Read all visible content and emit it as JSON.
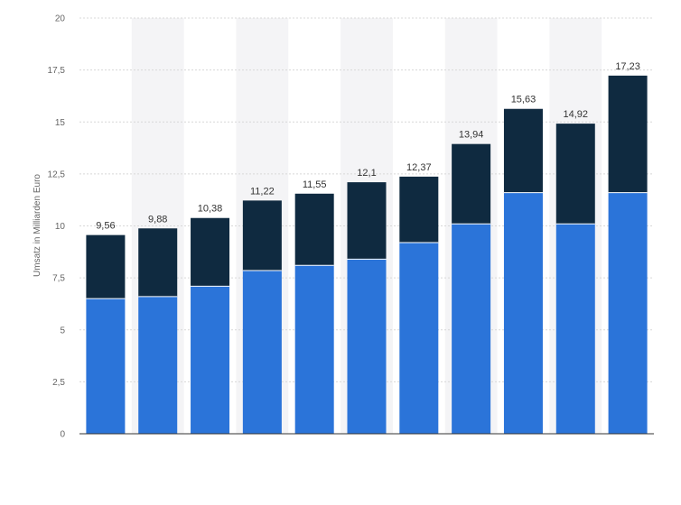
{
  "chart_data": {
    "type": "bar",
    "stacked": true,
    "ylabel": "Umsatz in Milliarden Euro",
    "ylim": [
      0,
      20
    ],
    "yticks": [
      0,
      2.5,
      5,
      7.5,
      10,
      12.5,
      15,
      17.5,
      20
    ],
    "ytick_labels": [
      "0",
      "2,5",
      "5",
      "7,5",
      "10",
      "12,5",
      "15",
      "17,5",
      "20"
    ],
    "grid": true,
    "totals": [
      9.56,
      9.88,
      10.38,
      11.22,
      11.55,
      12.1,
      12.37,
      13.94,
      15.63,
      14.92,
      17.23
    ],
    "total_labels": [
      "9,56",
      "9,88",
      "10,38",
      "11,22",
      "11,55",
      "12,1",
      "12,37",
      "13,94",
      "15,63",
      "14,92",
      "17,23"
    ],
    "series": [
      {
        "values": [
          6.5,
          6.6,
          7.1,
          7.85,
          8.1,
          8.4,
          9.2,
          10.1,
          11.6,
          10.1,
          11.6
        ]
      },
      {
        "values": [
          3.06,
          3.28,
          3.28,
          3.37,
          3.45,
          3.7,
          3.17,
          3.84,
          4.03,
          4.82,
          5.63
        ]
      }
    ],
    "colors": {
      "series": [
        "#2b74d9",
        "#0f2a40"
      ],
      "band": "#f4f4f6",
      "grid": "#d8d8d8",
      "axis": "#333333"
    }
  }
}
